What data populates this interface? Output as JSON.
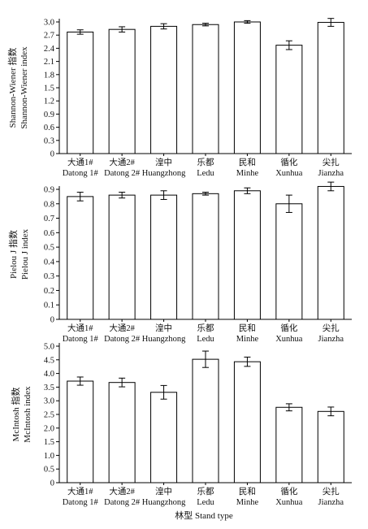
{
  "chart_data": [
    {
      "type": "bar",
      "ylabel": [
        "Shannon-Wiener 指数",
        "Shannon-Wiener index"
      ],
      "ylim": [
        0,
        3.0
      ],
      "ytick_step": 0.3,
      "yticks": [
        "0",
        "0.3",
        "0.6",
        "0.9",
        "1.2",
        "1.5",
        "1.8",
        "2.1",
        "2.4",
        "2.7",
        "3.0"
      ],
      "categories": [
        {
          "zh": "大通1#",
          "en": "Datong 1#"
        },
        {
          "zh": "大通2#",
          "en": "Datong 2#"
        },
        {
          "zh": "湟中",
          "en": "Huangzhong"
        },
        {
          "zh": "乐都",
          "en": "Ledu"
        },
        {
          "zh": "民和",
          "en": "Minhe"
        },
        {
          "zh": "循化",
          "en": "Xunhua"
        },
        {
          "zh": "尖扎",
          "en": "Jianzha"
        }
      ],
      "values": [
        2.77,
        2.83,
        2.9,
        2.94,
        3.0,
        2.47,
        2.99
      ],
      "errors": [
        0.05,
        0.06,
        0.06,
        0.03,
        0.03,
        0.1,
        0.09
      ]
    },
    {
      "type": "bar",
      "ylabel": [
        "Pielou J 指数",
        "Pielou J index"
      ],
      "ylim": [
        0,
        0.9
      ],
      "ytick_step": 0.1,
      "yticks": [
        "0",
        "0.1",
        "0.2",
        "0.3",
        "0.4",
        "0.5",
        "0.6",
        "0.7",
        "0.8",
        "0.9"
      ],
      "categories": [
        {
          "zh": "大通1#",
          "en": "Datong 1#"
        },
        {
          "zh": "大通2#",
          "en": "Datong 2#"
        },
        {
          "zh": "湟中",
          "en": "Huangzhong"
        },
        {
          "zh": "乐都",
          "en": "Ledu"
        },
        {
          "zh": "民和",
          "en": "Minhe"
        },
        {
          "zh": "循化",
          "en": "Xunhua"
        },
        {
          "zh": "尖扎",
          "en": "Jianzha"
        }
      ],
      "values": [
        0.85,
        0.86,
        0.86,
        0.87,
        0.89,
        0.8,
        0.92
      ],
      "errors": [
        0.03,
        0.02,
        0.03,
        0.01,
        0.02,
        0.06,
        0.03
      ]
    },
    {
      "type": "bar",
      "ylabel": [
        "McIntosh 指数",
        "McIntosh index"
      ],
      "ylim": [
        0,
        5.0
      ],
      "ytick_step": 0.5,
      "yticks": [
        "0",
        "0.5",
        "1.0",
        "1.5",
        "2.0",
        "2.5",
        "3.0",
        "3.5",
        "4.0",
        "4.5",
        "5.0"
      ],
      "categories": [
        {
          "zh": "大通1#",
          "en": "Datong 1#"
        },
        {
          "zh": "大通2#",
          "en": "Datong 2#"
        },
        {
          "zh": "湟中",
          "en": "Huangzhong"
        },
        {
          "zh": "乐都",
          "en": "Ledu"
        },
        {
          "zh": "民和",
          "en": "Minhe"
        },
        {
          "zh": "循化",
          "en": "Xunhua"
        },
        {
          "zh": "尖扎",
          "en": "Jianzha"
        }
      ],
      "values": [
        3.72,
        3.67,
        3.31,
        4.52,
        4.43,
        2.76,
        2.61
      ],
      "errors": [
        0.15,
        0.16,
        0.25,
        0.3,
        0.17,
        0.13,
        0.16
      ],
      "xlabel": "林型 Stand type"
    }
  ]
}
